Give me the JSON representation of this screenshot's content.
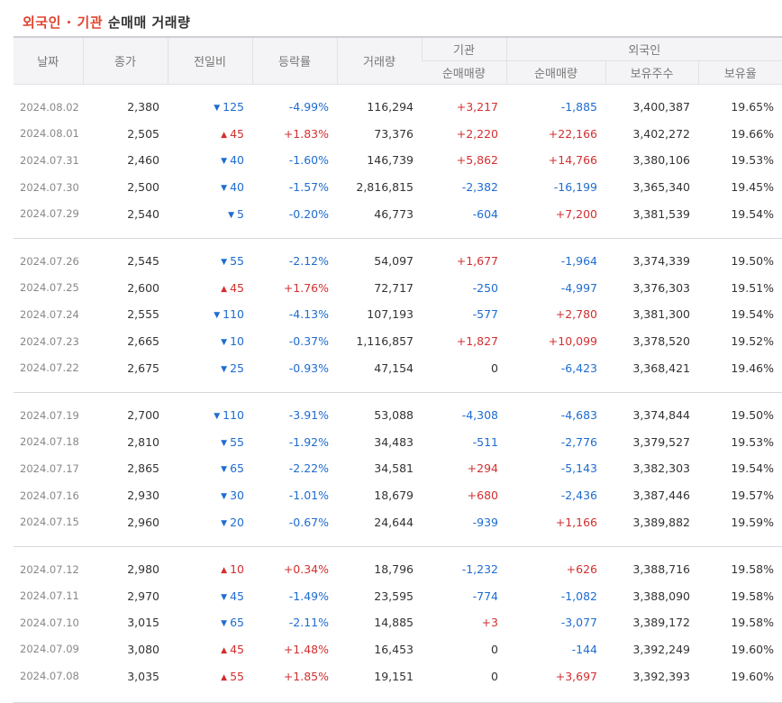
{
  "title": {
    "accent": "외국인 · 기관",
    "rest": " 순매매 거래량"
  },
  "headers": {
    "date": "날짜",
    "close": "종가",
    "change": "전일비",
    "rate": "등락률",
    "volume": "거래량",
    "inst": "기관",
    "inst_net": "순매매량",
    "foreign": "외국인",
    "foreign_net": "순매매량",
    "foreign_hold": "보유주수",
    "foreign_ratio": "보유율"
  },
  "colors": {
    "up": "#d32f2f",
    "down": "#1e6cd1"
  },
  "icons": {
    "up": "triangle-up-icon",
    "down": "triangle-down-icon"
  },
  "groups": [
    [
      {
        "date": "2024.08.02",
        "close": "2,380",
        "dir": "down",
        "change": "125",
        "rate": "-4.99%",
        "volume": "116,294",
        "inst": "+3,217",
        "foreign": "-1,885",
        "hold": "3,400,387",
        "ratio": "19.65%"
      },
      {
        "date": "2024.08.01",
        "close": "2,505",
        "dir": "up",
        "change": "45",
        "rate": "+1.83%",
        "volume": "73,376",
        "inst": "+2,220",
        "foreign": "+22,166",
        "hold": "3,402,272",
        "ratio": "19.66%"
      },
      {
        "date": "2024.07.31",
        "close": "2,460",
        "dir": "down",
        "change": "40",
        "rate": "-1.60%",
        "volume": "146,739",
        "inst": "+5,862",
        "foreign": "+14,766",
        "hold": "3,380,106",
        "ratio": "19.53%"
      },
      {
        "date": "2024.07.30",
        "close": "2,500",
        "dir": "down",
        "change": "40",
        "rate": "-1.57%",
        "volume": "2,816,815",
        "inst": "-2,382",
        "foreign": "-16,199",
        "hold": "3,365,340",
        "ratio": "19.45%"
      },
      {
        "date": "2024.07.29",
        "close": "2,540",
        "dir": "down",
        "change": "5",
        "rate": "-0.20%",
        "volume": "46,773",
        "inst": "-604",
        "foreign": "+7,200",
        "hold": "3,381,539",
        "ratio": "19.54%"
      }
    ],
    [
      {
        "date": "2024.07.26",
        "close": "2,545",
        "dir": "down",
        "change": "55",
        "rate": "-2.12%",
        "volume": "54,097",
        "inst": "+1,677",
        "foreign": "-1,964",
        "hold": "3,374,339",
        "ratio": "19.50%"
      },
      {
        "date": "2024.07.25",
        "close": "2,600",
        "dir": "up",
        "change": "45",
        "rate": "+1.76%",
        "volume": "72,717",
        "inst": "-250",
        "foreign": "-4,997",
        "hold": "3,376,303",
        "ratio": "19.51%"
      },
      {
        "date": "2024.07.24",
        "close": "2,555",
        "dir": "down",
        "change": "110",
        "rate": "-4.13%",
        "volume": "107,193",
        "inst": "-577",
        "foreign": "+2,780",
        "hold": "3,381,300",
        "ratio": "19.54%"
      },
      {
        "date": "2024.07.23",
        "close": "2,665",
        "dir": "down",
        "change": "10",
        "rate": "-0.37%",
        "volume": "1,116,857",
        "inst": "+1,827",
        "foreign": "+10,099",
        "hold": "3,378,520",
        "ratio": "19.52%"
      },
      {
        "date": "2024.07.22",
        "close": "2,675",
        "dir": "down",
        "change": "25",
        "rate": "-0.93%",
        "volume": "47,154",
        "inst": "0",
        "foreign": "-6,423",
        "hold": "3,368,421",
        "ratio": "19.46%"
      }
    ],
    [
      {
        "date": "2024.07.19",
        "close": "2,700",
        "dir": "down",
        "change": "110",
        "rate": "-3.91%",
        "volume": "53,088",
        "inst": "-4,308",
        "foreign": "-4,683",
        "hold": "3,374,844",
        "ratio": "19.50%"
      },
      {
        "date": "2024.07.18",
        "close": "2,810",
        "dir": "down",
        "change": "55",
        "rate": "-1.92%",
        "volume": "34,483",
        "inst": "-511",
        "foreign": "-2,776",
        "hold": "3,379,527",
        "ratio": "19.53%"
      },
      {
        "date": "2024.07.17",
        "close": "2,865",
        "dir": "down",
        "change": "65",
        "rate": "-2.22%",
        "volume": "34,581",
        "inst": "+294",
        "foreign": "-5,143",
        "hold": "3,382,303",
        "ratio": "19.54%"
      },
      {
        "date": "2024.07.16",
        "close": "2,930",
        "dir": "down",
        "change": "30",
        "rate": "-1.01%",
        "volume": "18,679",
        "inst": "+680",
        "foreign": "-2,436",
        "hold": "3,387,446",
        "ratio": "19.57%"
      },
      {
        "date": "2024.07.15",
        "close": "2,960",
        "dir": "down",
        "change": "20",
        "rate": "-0.67%",
        "volume": "24,644",
        "inst": "-939",
        "foreign": "+1,166",
        "hold": "3,389,882",
        "ratio": "19.59%"
      }
    ],
    [
      {
        "date": "2024.07.12",
        "close": "2,980",
        "dir": "up",
        "change": "10",
        "rate": "+0.34%",
        "volume": "18,796",
        "inst": "-1,232",
        "foreign": "+626",
        "hold": "3,388,716",
        "ratio": "19.58%"
      },
      {
        "date": "2024.07.11",
        "close": "2,970",
        "dir": "down",
        "change": "45",
        "rate": "-1.49%",
        "volume": "23,595",
        "inst": "-774",
        "foreign": "-1,082",
        "hold": "3,388,090",
        "ratio": "19.58%"
      },
      {
        "date": "2024.07.10",
        "close": "3,015",
        "dir": "down",
        "change": "65",
        "rate": "-2.11%",
        "volume": "14,885",
        "inst": "+3",
        "foreign": "-3,077",
        "hold": "3,389,172",
        "ratio": "19.58%"
      },
      {
        "date": "2024.07.09",
        "close": "3,080",
        "dir": "up",
        "change": "45",
        "rate": "+1.48%",
        "volume": "16,453",
        "inst": "0",
        "foreign": "-144",
        "hold": "3,392,249",
        "ratio": "19.60%"
      },
      {
        "date": "2024.07.08",
        "close": "3,035",
        "dir": "up",
        "change": "55",
        "rate": "+1.85%",
        "volume": "19,151",
        "inst": "0",
        "foreign": "+3,697",
        "hold": "3,392,393",
        "ratio": "19.60%"
      }
    ]
  ]
}
